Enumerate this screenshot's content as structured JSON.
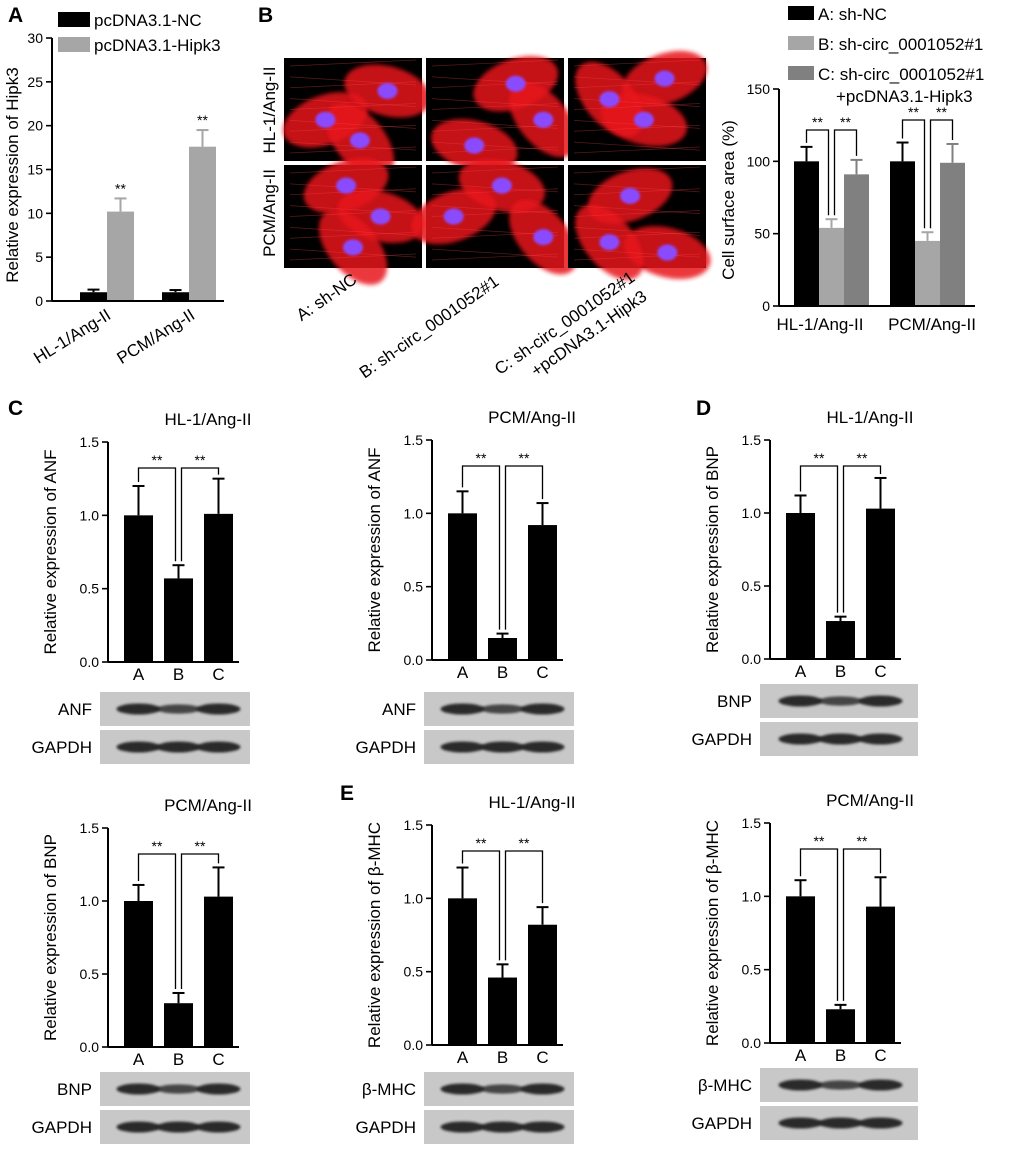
{
  "panel_letters": [
    "A",
    "B",
    "C",
    "D",
    "E"
  ],
  "colors": {
    "black": "#000000",
    "light_gray": "#a6a6a6",
    "dark_gray": "#808080",
    "cell_red": "#e8141c",
    "nucleus": "#8a4bff",
    "blot_bg": "#c8c8c8",
    "band": "#222222"
  },
  "microscopy": {
    "row_labels": [
      "HL-1/Ang-II",
      "PCM/Ang-II"
    ],
    "column_labels": [
      "A: sh-NC",
      "B: sh-circ_0001052#1",
      "C: sh-circ_0001052#1",
      "+pcDNA3.1-Hipk3"
    ]
  },
  "western_blots": [
    {
      "panel": "C-HL1",
      "labels": [
        "ANF",
        "GAPDH"
      ],
      "band_intensity": [
        [
          1.0,
          0.6,
          1.0
        ],
        [
          1.0,
          1.0,
          1.0
        ]
      ]
    },
    {
      "panel": "C-PCM",
      "labels": [
        "ANF",
        "GAPDH"
      ],
      "band_intensity": [
        [
          1.0,
          0.6,
          1.0
        ],
        [
          1.0,
          1.0,
          1.0
        ]
      ]
    },
    {
      "panel": "D-HL1",
      "labels": [
        "BNP",
        "GAPDH"
      ],
      "band_intensity": [
        [
          1.0,
          0.6,
          1.0
        ],
        [
          1.0,
          1.0,
          1.0
        ]
      ]
    },
    {
      "panel": "D-PCM",
      "labels": [
        "BNP",
        "GAPDH"
      ],
      "band_intensity": [
        [
          1.0,
          0.6,
          1.0
        ],
        [
          1.0,
          1.0,
          1.0
        ]
      ]
    },
    {
      "panel": "E-HL1",
      "labels": [
        "β-MHC",
        "GAPDH"
      ],
      "band_intensity": [
        [
          1.0,
          0.6,
          1.0
        ],
        [
          1.0,
          1.0,
          1.0
        ]
      ]
    },
    {
      "panel": "E-PCM",
      "labels": [
        "β-MHC",
        "GAPDH"
      ],
      "band_intensity": [
        [
          1.0,
          0.6,
          1.0
        ],
        [
          1.0,
          1.0,
          1.0
        ]
      ]
    }
  ],
  "chart_data": [
    {
      "id": "A",
      "type": "bar",
      "title": "",
      "categories": [
        "HL-1/Ang-II",
        "PCM/Ang-II"
      ],
      "series": [
        {
          "name": "pcDNA3.1-NC",
          "values": [
            1.0,
            1.0
          ],
          "errors": [
            0.3,
            0.25
          ],
          "color": "#000000"
        },
        {
          "name": "pcDNA3.1-Hipk3",
          "values": [
            10.2,
            17.6
          ],
          "errors": [
            1.5,
            1.9
          ],
          "color": "#a6a6a6"
        }
      ],
      "ylabel": "Relative expression of Hipk3",
      "xlabel": "",
      "ylim": [
        0,
        30
      ],
      "yticks": [
        0,
        5,
        10,
        15,
        20,
        25,
        30
      ],
      "annotations": [
        {
          "category": 0,
          "series": 1,
          "text": "**"
        },
        {
          "category": 1,
          "series": 1,
          "text": "**"
        }
      ],
      "legend": "top-left"
    },
    {
      "id": "B",
      "type": "bar",
      "title": "",
      "categories": [
        "HL-1/Ang-II",
        "PCM/Ang-II"
      ],
      "series": [
        {
          "name": "A: sh-NC",
          "values": [
            100,
            100
          ],
          "errors": [
            10,
            13
          ],
          "color": "#000000"
        },
        {
          "name": "B: sh-circ_0001052#1",
          "values": [
            54,
            45
          ],
          "errors": [
            6,
            6
          ],
          "color": "#a6a6a6"
        },
        {
          "name": "C: sh-circ_0001052#1",
          "name2": "+pcDNA3.1-Hipk3",
          "values": [
            91,
            99
          ],
          "errors": [
            10,
            13
          ],
          "color": "#808080"
        }
      ],
      "ylabel": "Cell surface area (%)",
      "xlabel": "",
      "ylim": [
        0,
        150
      ],
      "yticks": [
        0,
        50,
        100,
        150
      ],
      "brackets": [
        {
          "category": 0,
          "from": 0,
          "to": 1,
          "text": "**"
        },
        {
          "category": 0,
          "from": 1,
          "to": 2,
          "text": "**"
        },
        {
          "category": 1,
          "from": 0,
          "to": 1,
          "text": "**"
        },
        {
          "category": 1,
          "from": 1,
          "to": 2,
          "text": "**"
        }
      ],
      "legend": "top-right"
    },
    {
      "id": "C-HL1",
      "type": "bar",
      "title": "HL-1/Ang-II",
      "categories": [
        "A",
        "B",
        "C"
      ],
      "values": [
        1.0,
        0.57,
        1.01
      ],
      "errors": [
        0.2,
        0.09,
        0.24
      ],
      "ylabel": "Relative expression of ANF",
      "ylim": [
        0,
        1.5
      ],
      "yticks": [
        "0.0",
        "0.5",
        "1.0",
        "1.5"
      ],
      "brackets": [
        {
          "from": 0,
          "to": 1,
          "text": "**"
        },
        {
          "from": 1,
          "to": 2,
          "text": "**"
        }
      ]
    },
    {
      "id": "C-PCM",
      "type": "bar",
      "title": "PCM/Ang-II",
      "categories": [
        "A",
        "B",
        "C"
      ],
      "values": [
        1.0,
        0.15,
        0.92
      ],
      "errors": [
        0.15,
        0.03,
        0.15
      ],
      "ylabel": "Relative expression of ANF",
      "ylim": [
        0,
        1.5
      ],
      "yticks": [
        "0.0",
        "0.5",
        "1.0",
        "1.5"
      ],
      "brackets": [
        {
          "from": 0,
          "to": 1,
          "text": "**"
        },
        {
          "from": 1,
          "to": 2,
          "text": "**"
        }
      ]
    },
    {
      "id": "D-HL1",
      "type": "bar",
      "title": "HL-1/Ang-II",
      "categories": [
        "A",
        "B",
        "C"
      ],
      "values": [
        1.0,
        0.26,
        1.03
      ],
      "errors": [
        0.12,
        0.03,
        0.21
      ],
      "ylabel": "Relative expression of BNP",
      "ylim": [
        0,
        1.5
      ],
      "yticks": [
        "0.0",
        "0.5",
        "1.0",
        "1.5"
      ],
      "brackets": [
        {
          "from": 0,
          "to": 1,
          "text": "**"
        },
        {
          "from": 1,
          "to": 2,
          "text": "**"
        }
      ]
    },
    {
      "id": "D-PCM",
      "type": "bar",
      "title": "PCM/Ang-II",
      "categories": [
        "A",
        "B",
        "C"
      ],
      "values": [
        1.0,
        0.3,
        1.03
      ],
      "errors": [
        0.11,
        0.07,
        0.2
      ],
      "ylabel": "Relative expression of BNP",
      "ylim": [
        0,
        1.5
      ],
      "yticks": [
        "0.0",
        "0.5",
        "1.0",
        "1.5"
      ],
      "brackets": [
        {
          "from": 0,
          "to": 1,
          "text": "**"
        },
        {
          "from": 1,
          "to": 2,
          "text": "**"
        }
      ]
    },
    {
      "id": "E-HL1",
      "type": "bar",
      "title": "HL-1/Ang-II",
      "categories": [
        "A",
        "B",
        "C"
      ],
      "values": [
        1.0,
        0.46,
        0.82
      ],
      "errors": [
        0.21,
        0.09,
        0.12
      ],
      "ylabel": "Relative expression of β-MHC",
      "ylim": [
        0,
        1.5
      ],
      "yticks": [
        "0.0",
        "0.5",
        "1.0",
        "1.5"
      ],
      "brackets": [
        {
          "from": 0,
          "to": 1,
          "text": "**"
        },
        {
          "from": 1,
          "to": 2,
          "text": "**"
        }
      ]
    },
    {
      "id": "E-PCM",
      "type": "bar",
      "title": "PCM/Ang-II",
      "categories": [
        "A",
        "B",
        "C"
      ],
      "values": [
        1.0,
        0.23,
        0.93
      ],
      "errors": [
        0.11,
        0.03,
        0.2
      ],
      "ylabel": "Relative expression of β-MHC",
      "ylim": [
        0,
        1.5
      ],
      "yticks": [
        "0.0",
        "0.5",
        "1.0",
        "1.5"
      ],
      "brackets": [
        {
          "from": 0,
          "to": 1,
          "text": "**"
        },
        {
          "from": 1,
          "to": 2,
          "text": "**"
        }
      ]
    }
  ]
}
